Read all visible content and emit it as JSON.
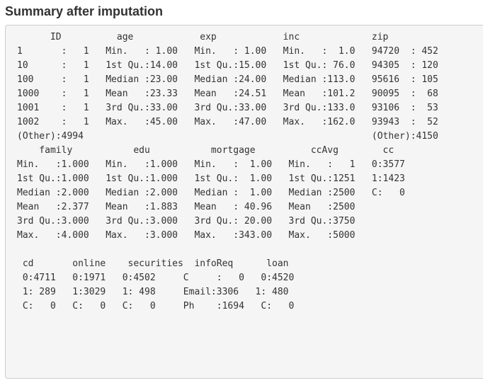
{
  "section": {
    "title": "Summary after imputation"
  },
  "summary_table_1": {
    "header": "      ID          age            exp            inc             zip     ",
    "rows": [
      "1       :   1   Min.   : 1.00   Min.   : 1.00   Min.   :  1.0   94720  : 452  ",
      "10      :   1   1st Qu.:14.00   1st Qu.:15.00   1st Qu.: 76.0   94305  : 120  ",
      "100     :   1   Median :23.00   Median :24.00   Median :113.0   95616  : 105  ",
      "1000    :   1   Mean   :23.33   Mean   :24.51   Mean   :101.2   90095  :  68  ",
      "1001    :   1   3rd Qu.:33.00   3rd Qu.:33.00   3rd Qu.:133.0   93106  :  53  ",
      "1002    :   1   Max.   :45.00   Max.   :47.00   Max.   :162.0   93943  :  52  ",
      "(Other):4994                                                    (Other):4150  "
    ]
  },
  "summary_table_2": {
    "header": "    family           edu           mortgage          ccAvg        cc      ",
    "rows": [
      "Min.   :1.000   Min.   :1.000   Min.   :  1.00   Min.   :   1   0:3577  ",
      "1st Qu.:1.000   1st Qu.:1.000   1st Qu.:  1.00   1st Qu.:1251   1:1423  ",
      "Median :2.000   Median :2.000   Median :  1.00   Median :2500   C:   0  ",
      "Mean   :2.377   Mean   :1.883   Mean   : 40.96   Mean   :2500           ",
      "3rd Qu.:3.000   3rd Qu.:3.000   3rd Qu.: 20.00   3rd Qu.:3750           ",
      "Max.   :4.000   Max.   :3.000   Max.   :343.00   Max.   :5000           "
    ]
  },
  "summary_table_3": {
    "header": " cd       online    securities  infoReq      loan    ",
    "rows": [
      " 0:4711   0:1971   0:4502     C     :   0   0:4520  ",
      " 1: 289   1:3029   1: 498     Email:3306   1: 480  ",
      " C:   0   C:   0   C:   0     Ph    :1694   C:   0  "
    ]
  }
}
